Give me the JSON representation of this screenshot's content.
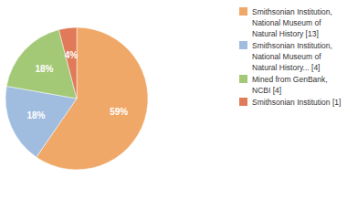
{
  "chart_data": {
    "type": "pie",
    "categories": [
      "Smithsonian Institution, National Museum of Natural History [13]",
      "Smithsonian Institution, National Museum of Natural History... [4]",
      "Mined from GenBank, NCBI [4]",
      "Smithsonian Institution [1]"
    ],
    "values": [
      59,
      18,
      18,
      4
    ],
    "value_labels": [
      "59%",
      "18%",
      "18%",
      "4%"
    ],
    "colors": [
      "#f0a868",
      "#a0bde0",
      "#a3c977",
      "#e07a58"
    ],
    "data_labels": true,
    "legend": "right"
  }
}
